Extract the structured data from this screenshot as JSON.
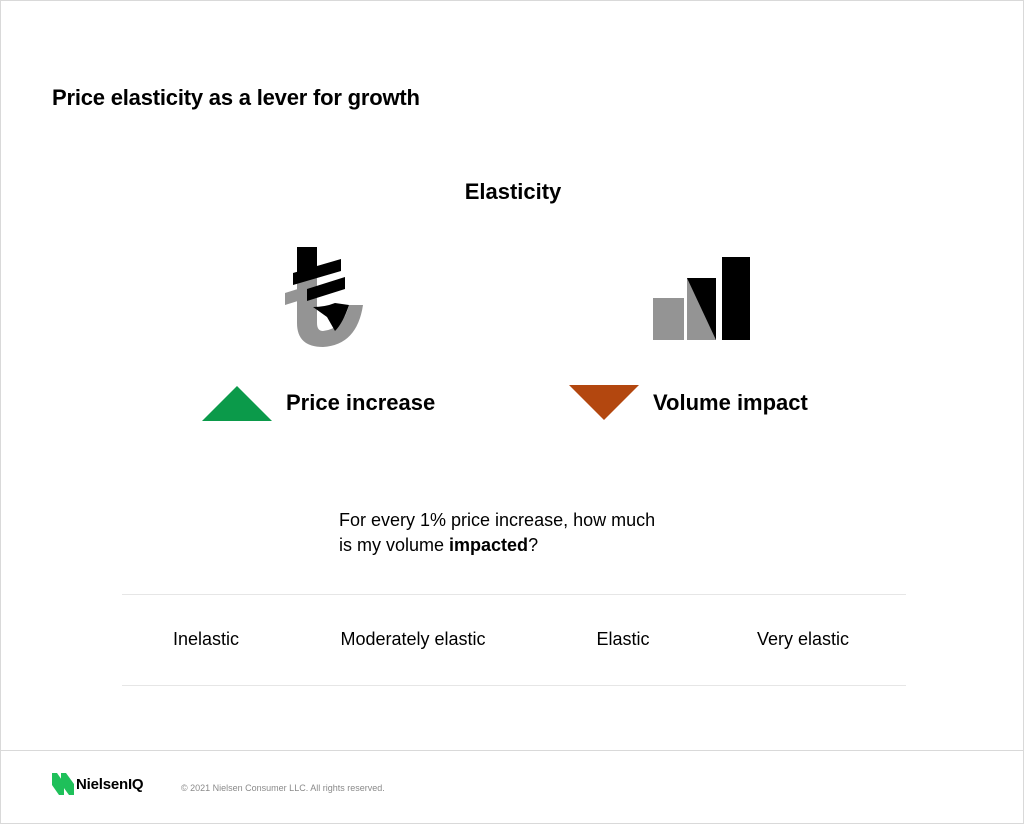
{
  "slide": {
    "title": "Price elasticity as a lever for growth",
    "subtitle": "Elasticity"
  },
  "icons": {
    "currency": "turkish-lira-icon",
    "volume": "bar-chart-icon",
    "up": "triangle-up-icon",
    "down": "triangle-down-icon"
  },
  "labels": {
    "price": "Price increase",
    "volume": "Volume impact"
  },
  "question": {
    "line1": "For every 1% price increase, how much",
    "line2_before": "is my volume ",
    "line2_bold": "impacted",
    "line2_after": "?"
  },
  "scale": [
    {
      "label": "Inelastic"
    },
    {
      "label": "Moderately elastic"
    },
    {
      "label": "Elastic"
    },
    {
      "label": "Very elastic"
    }
  ],
  "footer": {
    "brand": "NielsenIQ",
    "copyright": "© 2021 Nielsen Consumer LLC. All rights reserved."
  },
  "colors": {
    "up_triangle": "#0b9a4a",
    "down_triangle": "#b3470f",
    "icon_dark": "#000000",
    "icon_grey": "#949494",
    "logo_green": "#1fc05a"
  }
}
